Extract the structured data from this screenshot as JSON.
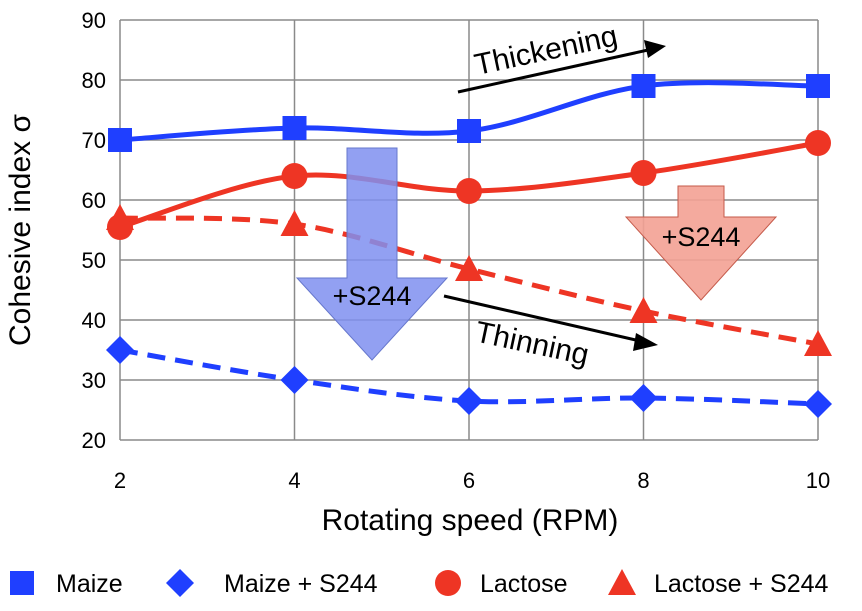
{
  "chart_data": {
    "type": "line",
    "xlabel": "Rotating speed (RPM)",
    "ylabel": "Cohesive index σ",
    "xlim": [
      2,
      10
    ],
    "ylim": [
      20,
      90
    ],
    "x_ticks": [
      2,
      4,
      6,
      8,
      10
    ],
    "y_ticks": [
      20,
      30,
      40,
      50,
      60,
      70,
      80,
      90
    ],
    "x": [
      2,
      4,
      6,
      8,
      10
    ],
    "grid": "vertical",
    "legend_position": "bottom",
    "series": [
      {
        "name": "Maize",
        "values": [
          70,
          72,
          71.5,
          79,
          79
        ],
        "color": "#1f3fff",
        "marker": "square",
        "line": "solid"
      },
      {
        "name": "Maize + S244",
        "values": [
          35,
          30,
          26.5,
          27,
          26
        ],
        "color": "#1f3fff",
        "marker": "diamond",
        "line": "dashed"
      },
      {
        "name": "Lactose",
        "values": [
          55.5,
          64,
          61.5,
          64.5,
          69.5
        ],
        "color": "#ee3524",
        "marker": "circle",
        "line": "solid"
      },
      {
        "name": "Lactose + S244",
        "values": [
          57,
          56,
          48.5,
          41.5,
          36
        ],
        "color": "#ee3524",
        "marker": "triangle",
        "line": "dashed"
      }
    ],
    "annotations": [
      {
        "text": "Thickening"
      },
      {
        "text": "Thinning"
      },
      {
        "text": "+S244",
        "color": "#7f8ff0"
      },
      {
        "text": "+S244",
        "color": "#f3a193"
      }
    ]
  }
}
